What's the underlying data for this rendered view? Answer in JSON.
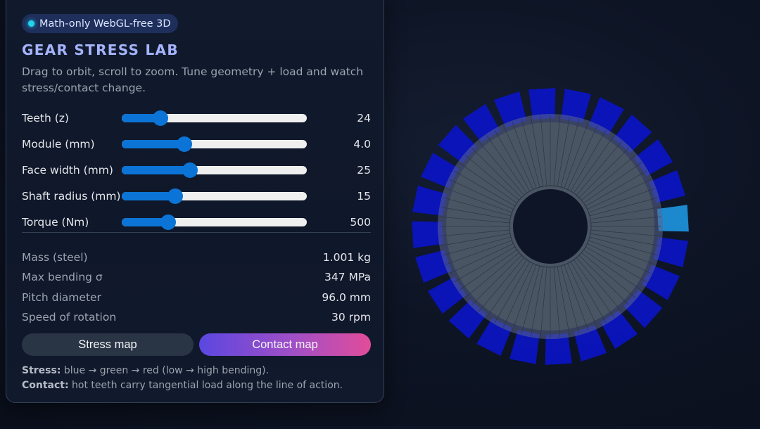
{
  "badge": {
    "label": "Math-only WebGL-free 3D",
    "dot_color": "#22d3ee"
  },
  "header": {
    "title": "GEAR STRESS LAB",
    "subtitle": "Drag to orbit, scroll to zoom. Tune geometry + load and watch stress/contact change."
  },
  "controls": [
    {
      "label": "Teeth (z)",
      "value": "24",
      "fraction": 0.21
    },
    {
      "label": "Module (mm)",
      "value": "4.0",
      "fraction": 0.34
    },
    {
      "label": "Face width (mm)",
      "value": "25",
      "fraction": 0.37
    },
    {
      "label": "Shaft radius (mm)",
      "value": "15",
      "fraction": 0.29
    },
    {
      "label": "Torque (Nm)",
      "value": "500",
      "fraction": 0.25
    }
  ],
  "stats": [
    {
      "label": "Mass (steel)",
      "value": "1.001 kg"
    },
    {
      "label": "Max bending σ",
      "value": "347 MPa"
    },
    {
      "label": "Pitch diameter",
      "value": "96.0 mm"
    },
    {
      "label": "Speed of rotation",
      "value": "30 rpm"
    }
  ],
  "buttons": {
    "stress": "Stress map",
    "contact": "Contact map"
  },
  "legend": {
    "stress_key": "Stress:",
    "stress_text": " blue → green → red (low → high bending).",
    "contact_key": "Contact:",
    "contact_text": " hot teeth carry tangential load along the line of action."
  },
  "gear": {
    "teeth": 24,
    "tooth_color": "#0a14c8",
    "hot_tooth_color": "#1e8fd8",
    "disc_color": "#4a5563",
    "hub_color": "#0d1526"
  }
}
